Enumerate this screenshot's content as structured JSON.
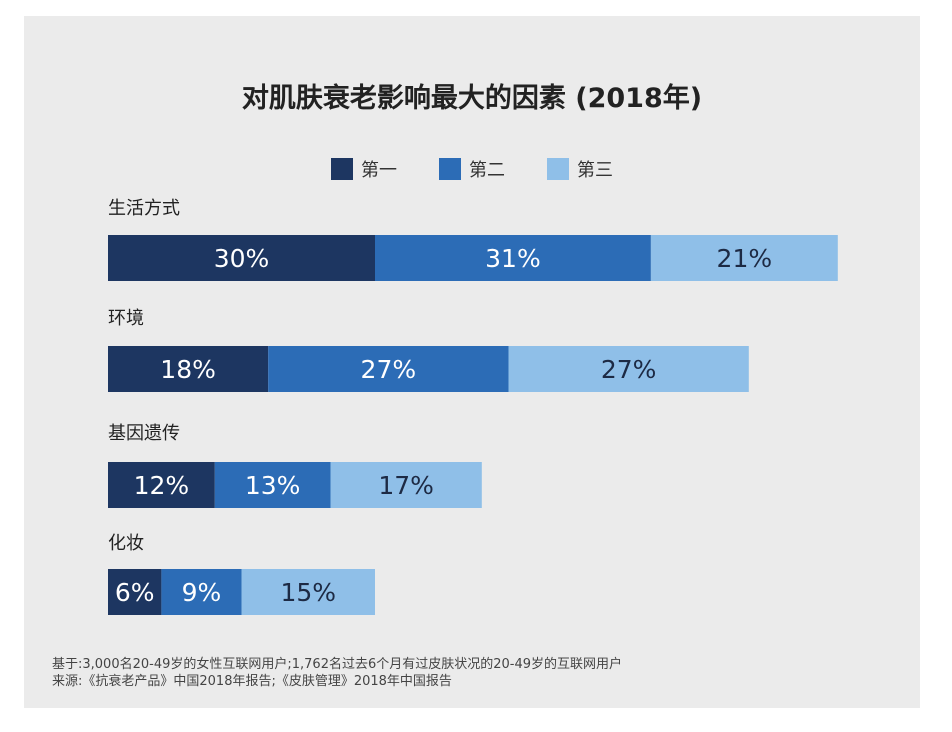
{
  "title": "对肌肤衰老影响最大的因素 (2018年)",
  "colors": {
    "first": "#1d3661",
    "second": "#2c6cb6",
    "third": "#8fbfe8",
    "card": "#ebebeb"
  },
  "legend": [
    {
      "label": "第一",
      "color": "#1d3661"
    },
    {
      "label": "第二",
      "color": "#2c6cb6"
    },
    {
      "label": "第三",
      "color": "#8fbfe8"
    }
  ],
  "chart_data": {
    "type": "bar",
    "orientation": "horizontal",
    "stacked": true,
    "title": "对肌肤衰老影响最大的因素 (2018年)",
    "categories": [
      "生活方式",
      "环境",
      "基因遗传",
      "化妆"
    ],
    "series": [
      {
        "name": "第一",
        "values": [
          30,
          18,
          12,
          6
        ]
      },
      {
        "name": "第二",
        "values": [
          31,
          27,
          13,
          9
        ]
      },
      {
        "name": "第三",
        "values": [
          21,
          27,
          17,
          15
        ]
      }
    ],
    "value_suffix": "%",
    "xlabel": "",
    "ylabel": ""
  },
  "footnote": {
    "line1": "基于:3,000名20-49岁的女性互联网用户;1,762名过去6个月有过皮肤状况的20-49岁的互联网用户",
    "line2": "来源:《抗衰老产品》中国2018年报告;《皮肤管理》2018年中国报告"
  }
}
